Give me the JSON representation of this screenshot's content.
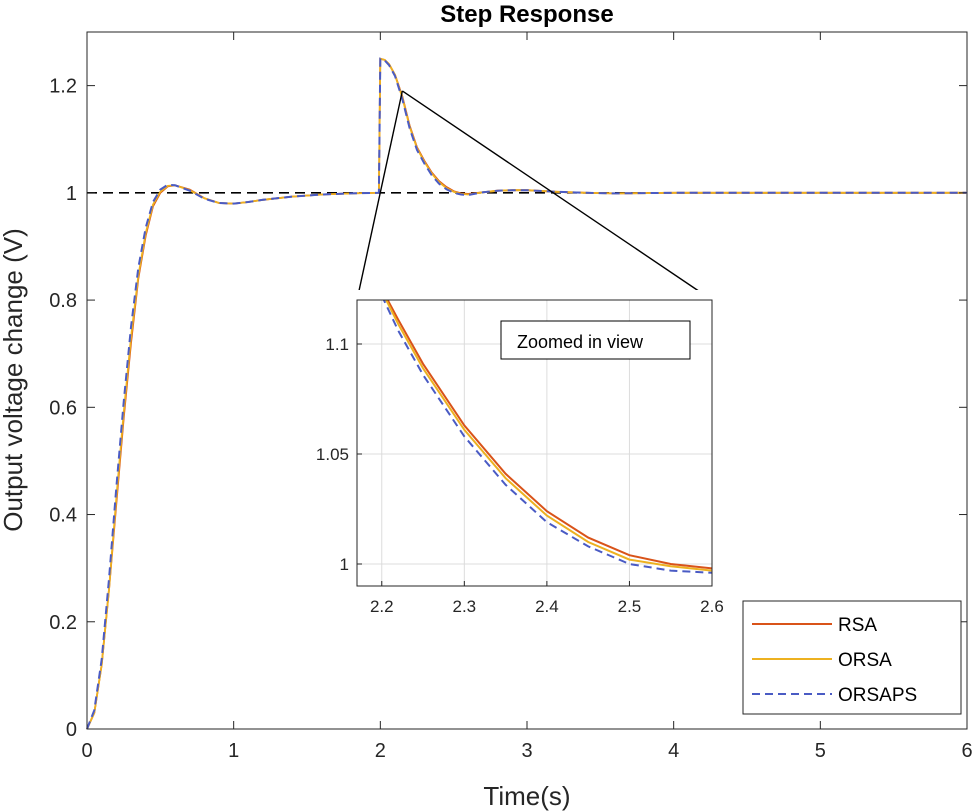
{
  "chart_data": {
    "type": "line",
    "title": "Step Response",
    "xlabel": "Time(s)",
    "ylabel": "Output voltage change (V)",
    "xlim": [
      0,
      6
    ],
    "ylim": [
      0,
      1.3
    ],
    "xticks": [
      0,
      1,
      2,
      3,
      4,
      5,
      6
    ],
    "xtick_labels": [
      "0",
      "1",
      "2",
      "3",
      "4",
      "5",
      "6"
    ],
    "yticks": [
      0,
      0.2,
      0.4,
      0.6,
      0.8,
      1.0,
      1.2
    ],
    "ytick_labels": [
      "0",
      "0.2",
      "0.4",
      "0.6",
      "0.8",
      "1",
      "1.2"
    ],
    "reference_line": 1.0,
    "series": [
      {
        "name": "RSA",
        "color": "#d95319",
        "style": "solid",
        "points": [
          [
            0,
            0
          ],
          [
            0.05,
            0.03
          ],
          [
            0.1,
            0.12
          ],
          [
            0.15,
            0.26
          ],
          [
            0.2,
            0.42
          ],
          [
            0.25,
            0.58
          ],
          [
            0.3,
            0.72
          ],
          [
            0.35,
            0.84
          ],
          [
            0.4,
            0.92
          ],
          [
            0.45,
            0.975
          ],
          [
            0.5,
            1.0
          ],
          [
            0.55,
            1.012
          ],
          [
            0.6,
            1.014
          ],
          [
            0.7,
            1.006
          ],
          [
            0.8,
            0.99
          ],
          [
            0.9,
            0.981
          ],
          [
            1.0,
            0.98
          ],
          [
            1.1,
            0.983
          ],
          [
            1.2,
            0.987
          ],
          [
            1.4,
            0.993
          ],
          [
            1.6,
            0.997
          ],
          [
            1.8,
            0.999
          ],
          [
            1.99,
            1.0
          ],
          [
            2.0,
            1.25
          ],
          [
            2.03,
            1.248
          ],
          [
            2.06,
            1.24
          ],
          [
            2.1,
            1.22
          ],
          [
            2.15,
            1.18
          ],
          [
            2.2,
            1.125
          ],
          [
            2.25,
            1.085
          ],
          [
            2.3,
            1.06
          ],
          [
            2.35,
            1.038
          ],
          [
            2.4,
            1.022
          ],
          [
            2.45,
            1.011
          ],
          [
            2.5,
            1.003
          ],
          [
            2.55,
            0.999
          ],
          [
            2.6,
            0.998
          ],
          [
            2.7,
            1.001
          ],
          [
            2.8,
            1.004
          ],
          [
            2.9,
            1.005
          ],
          [
            3.0,
            1.005
          ],
          [
            3.2,
            1.002
          ],
          [
            3.4,
            1.0
          ],
          [
            3.6,
            0.999
          ],
          [
            4.0,
            1.0
          ],
          [
            5.0,
            1.0
          ],
          [
            6.0,
            1.0
          ]
        ]
      },
      {
        "name": "ORSA",
        "color": "#edb120",
        "style": "solid",
        "points": [
          [
            0,
            0
          ],
          [
            0.05,
            0.03
          ],
          [
            0.1,
            0.12
          ],
          [
            0.15,
            0.26
          ],
          [
            0.2,
            0.43
          ],
          [
            0.25,
            0.59
          ],
          [
            0.3,
            0.73
          ],
          [
            0.35,
            0.845
          ],
          [
            0.4,
            0.925
          ],
          [
            0.45,
            0.978
          ],
          [
            0.5,
            1.002
          ],
          [
            0.55,
            1.013
          ],
          [
            0.6,
            1.014
          ],
          [
            0.7,
            1.005
          ],
          [
            0.8,
            0.99
          ],
          [
            0.9,
            0.981
          ],
          [
            1.0,
            0.98
          ],
          [
            1.1,
            0.983
          ],
          [
            1.2,
            0.987
          ],
          [
            1.4,
            0.993
          ],
          [
            1.6,
            0.997
          ],
          [
            1.8,
            0.999
          ],
          [
            1.99,
            1.0
          ],
          [
            2.0,
            1.25
          ],
          [
            2.03,
            1.248
          ],
          [
            2.06,
            1.24
          ],
          [
            2.1,
            1.22
          ],
          [
            2.15,
            1.178
          ],
          [
            2.2,
            1.123
          ],
          [
            2.25,
            1.083
          ],
          [
            2.3,
            1.058
          ],
          [
            2.35,
            1.036
          ],
          [
            2.4,
            1.02
          ],
          [
            2.45,
            1.009
          ],
          [
            2.5,
            1.002
          ],
          [
            2.55,
            0.998
          ],
          [
            2.6,
            0.997
          ],
          [
            2.7,
            1.001
          ],
          [
            2.8,
            1.004
          ],
          [
            2.9,
            1.005
          ],
          [
            3.0,
            1.005
          ],
          [
            3.2,
            1.002
          ],
          [
            3.4,
            1.0
          ],
          [
            3.6,
            0.999
          ],
          [
            4.0,
            1.0
          ],
          [
            5.0,
            1.0
          ],
          [
            6.0,
            1.0
          ]
        ]
      },
      {
        "name": "ORSAPS",
        "color": "#4a5bc4",
        "style": "dashed",
        "points": [
          [
            0,
            0
          ],
          [
            0.05,
            0.035
          ],
          [
            0.1,
            0.13
          ],
          [
            0.15,
            0.28
          ],
          [
            0.2,
            0.45
          ],
          [
            0.25,
            0.61
          ],
          [
            0.3,
            0.75
          ],
          [
            0.35,
            0.86
          ],
          [
            0.4,
            0.935
          ],
          [
            0.45,
            0.983
          ],
          [
            0.5,
            1.006
          ],
          [
            0.55,
            1.015
          ],
          [
            0.6,
            1.014
          ],
          [
            0.7,
            1.004
          ],
          [
            0.8,
            0.989
          ],
          [
            0.9,
            0.981
          ],
          [
            1.0,
            0.98
          ],
          [
            1.1,
            0.983
          ],
          [
            1.2,
            0.987
          ],
          [
            1.4,
            0.993
          ],
          [
            1.6,
            0.997
          ],
          [
            1.8,
            0.999
          ],
          [
            1.99,
            1.0
          ],
          [
            2.0,
            1.25
          ],
          [
            2.03,
            1.247
          ],
          [
            2.06,
            1.238
          ],
          [
            2.1,
            1.218
          ],
          [
            2.15,
            1.175
          ],
          [
            2.2,
            1.12
          ],
          [
            2.25,
            1.08
          ],
          [
            2.3,
            1.055
          ],
          [
            2.35,
            1.033
          ],
          [
            2.4,
            1.017
          ],
          [
            2.45,
            1.007
          ],
          [
            2.5,
            1.0
          ],
          [
            2.55,
            0.997
          ],
          [
            2.6,
            0.996
          ],
          [
            2.7,
            1.001
          ],
          [
            2.8,
            1.004
          ],
          [
            2.9,
            1.005
          ],
          [
            3.0,
            1.005
          ],
          [
            3.2,
            1.002
          ],
          [
            3.4,
            1.0
          ],
          [
            3.6,
            0.999
          ],
          [
            4.0,
            1.0
          ],
          [
            5.0,
            1.0
          ],
          [
            6.0,
            1.0
          ]
        ]
      }
    ],
    "legend": {
      "placement": "bottom-right",
      "entries": [
        "RSA",
        "ORSA",
        "ORSAPS"
      ]
    },
    "inset": {
      "xlim": [
        2.17,
        2.6
      ],
      "ylim": [
        0.99,
        1.12
      ],
      "xticks": [
        2.2,
        2.3,
        2.4,
        2.5,
        2.6
      ],
      "xtick_labels": [
        "2.2",
        "2.3",
        "2.4",
        "2.5",
        "2.6"
      ],
      "yticks": [
        1.0,
        1.05,
        1.1
      ],
      "ytick_labels": [
        "1",
        "1.05",
        "1.1"
      ],
      "grid": true,
      "annotation": "Zoomed in view",
      "zoom_source": {
        "x": 2.15,
        "y": 1.19
      },
      "series": [
        {
          "name": "RSA",
          "points": [
            [
              2.2,
              1.125
            ],
            [
              2.22,
              1.111
            ],
            [
              2.25,
              1.091
            ],
            [
              2.3,
              1.063
            ],
            [
              2.35,
              1.041
            ],
            [
              2.4,
              1.024
            ],
            [
              2.45,
              1.012
            ],
            [
              2.5,
              1.004
            ],
            [
              2.55,
              1.0
            ],
            [
              2.6,
              0.998
            ]
          ]
        },
        {
          "name": "ORSA",
          "points": [
            [
              2.2,
              1.124
            ],
            [
              2.22,
              1.109
            ],
            [
              2.25,
              1.089
            ],
            [
              2.3,
              1.061
            ],
            [
              2.35,
              1.039
            ],
            [
              2.4,
              1.022
            ],
            [
              2.45,
              1.01
            ],
            [
              2.5,
              1.002
            ],
            [
              2.55,
              0.999
            ],
            [
              2.6,
              0.997
            ]
          ]
        },
        {
          "name": "ORSAPS",
          "points": [
            [
              2.2,
              1.122
            ],
            [
              2.22,
              1.106
            ],
            [
              2.25,
              1.086
            ],
            [
              2.3,
              1.058
            ],
            [
              2.35,
              1.036
            ],
            [
              2.4,
              1.019
            ],
            [
              2.45,
              1.008
            ],
            [
              2.5,
              1.0
            ],
            [
              2.55,
              0.997
            ],
            [
              2.6,
              0.996
            ]
          ]
        }
      ]
    }
  }
}
